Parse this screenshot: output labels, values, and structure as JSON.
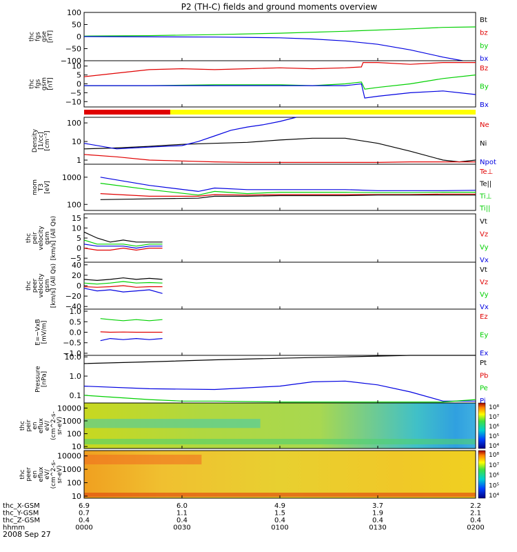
{
  "title": "P2 (TH-C) fields and ground moments overview",
  "date_label": "2008 Sep 27",
  "colors": {
    "black": "#000000",
    "red": "#e00000",
    "green": "#00d000",
    "blue": "#0000e0",
    "yellow": "#ffff00"
  },
  "chart_data": [
    {
      "type": "line",
      "panel": "fgs_gse",
      "ylabel": [
        "thc",
        "fgs",
        "gse",
        "[nT]"
      ],
      "yticks": [
        "100",
        "50",
        "0",
        "−50",
        "−100"
      ],
      "ylim": [
        -100,
        100
      ],
      "log": false,
      "legend": [
        {
          "text": "Bt",
          "color": "#000000"
        },
        {
          "text": "bz",
          "color": "#e00000"
        },
        {
          "text": "by",
          "color": "#00d000"
        },
        {
          "text": "bx",
          "color": "#0000e0"
        }
      ],
      "series": [
        {
          "color": "#00d000",
          "x": [
            0,
            20,
            40,
            60,
            80,
            100,
            110,
            120
          ],
          "y": [
            2,
            4,
            8,
            14,
            22,
            32,
            38,
            40
          ]
        },
        {
          "color": "#0000e0",
          "x": [
            0,
            20,
            40,
            60,
            70,
            80,
            90,
            100,
            110,
            116
          ],
          "y": [
            0,
            -1,
            -2,
            -5,
            -10,
            -18,
            -32,
            -55,
            -85,
            -100
          ]
        }
      ]
    },
    {
      "type": "line",
      "panel": "fgs_gsm",
      "ylabel": [
        "thc",
        "fgs",
        "gsm",
        "[nT]"
      ],
      "yticks": [
        "10",
        "5",
        "0",
        "−5",
        "−10"
      ],
      "ylim": [
        -13,
        13
      ],
      "log": false,
      "legend": [
        {
          "text": "Bz",
          "color": "#e00000"
        },
        {
          "text": "By",
          "color": "#00d000"
        },
        {
          "text": "Bx",
          "color": "#0000e0"
        }
      ],
      "series": [
        {
          "color": "#e00000",
          "x": [
            0,
            10,
            20,
            30,
            40,
            50,
            60,
            70,
            80,
            85,
            85.5,
            90,
            100,
            110,
            120
          ],
          "y": [
            4,
            6,
            8,
            8.5,
            8,
            8.5,
            9,
            8.5,
            9,
            9.5,
            12,
            12,
            11,
            12,
            12
          ]
        },
        {
          "color": "#00d000",
          "x": [
            0,
            20,
            40,
            60,
            70,
            80,
            85,
            86,
            90,
            100,
            110,
            120
          ],
          "y": [
            -1,
            -1,
            -0.5,
            -0.5,
            -1,
            0,
            1,
            -3,
            -2,
            0,
            3,
            5
          ]
        },
        {
          "color": "#0000e0",
          "x": [
            0,
            20,
            40,
            60,
            70,
            80,
            85,
            86,
            90,
            100,
            110,
            120
          ],
          "y": [
            -1,
            -1,
            -1,
            -1,
            -1,
            -1,
            0,
            -8,
            -7,
            -5,
            -4,
            -6
          ]
        }
      ]
    },
    {
      "type": "line",
      "panel": "density",
      "ylabel": [
        "Density",
        "[1/cc]",
        "[cm⁻³]"
      ],
      "yticks": [
        "100",
        "10",
        "1"
      ],
      "ylim": [
        0.6,
        200
      ],
      "log": true,
      "legend": [
        {
          "text": "Ne",
          "color": "#e00000"
        },
        {
          "text": "Ni",
          "color": "#000000"
        },
        {
          "text": "Npot",
          "color": "#0000e0"
        }
      ],
      "series": [
        {
          "color": "#000000",
          "x": [
            0,
            10,
            20,
            30,
            40,
            50,
            60,
            70,
            80,
            90,
            100,
            110,
            115,
            120
          ],
          "y": [
            4,
            4.5,
            5.5,
            7,
            8,
            9,
            12,
            15,
            15,
            8,
            3,
            1,
            0.8,
            1
          ]
        },
        {
          "color": "#0000e0",
          "x": [
            0,
            10,
            20,
            30,
            35,
            40,
            45,
            50,
            55,
            60,
            65
          ],
          "y": [
            8,
            4,
            5,
            6,
            10,
            20,
            40,
            60,
            80,
            120,
            200
          ]
        },
        {
          "color": "#e00000",
          "x": [
            0,
            10,
            20,
            30,
            40,
            50,
            60,
            70,
            80,
            90,
            100,
            110,
            120
          ],
          "y": [
            2,
            1.5,
            1,
            0.9,
            0.8,
            0.75,
            0.75,
            0.75,
            0.75,
            0.75,
            0.8,
            0.8,
            0.8
          ]
        }
      ]
    },
    {
      "type": "line",
      "panel": "mom_temp",
      "ylabel": [
        "mom",
        "T3",
        "[eV]"
      ],
      "yticks": [
        "1000",
        "100"
      ],
      "ylim": [
        60,
        3000
      ],
      "log": true,
      "legend": [
        {
          "text": "Te⊥",
          "color": "#e00000"
        },
        {
          "text": "Te||",
          "color": "#000000"
        },
        {
          "text": "Ti⊥",
          "color": "#00d000"
        },
        {
          "text": "Ti||",
          "color": "#00d000"
        }
      ],
      "series": [
        {
          "color": "#0000e0",
          "x": [
            5,
            20,
            35,
            40,
            50,
            60,
            70,
            80,
            90,
            100,
            110,
            120
          ],
          "y": [
            1000,
            500,
            300,
            400,
            350,
            350,
            350,
            350,
            320,
            320,
            320,
            330
          ]
        },
        {
          "color": "#00d000",
          "x": [
            5,
            20,
            35,
            40,
            50,
            60,
            70,
            80,
            90,
            100,
            110,
            120
          ],
          "y": [
            600,
            350,
            220,
            300,
            250,
            280,
            280,
            280,
            270,
            270,
            280,
            280
          ]
        },
        {
          "color": "#e00000",
          "x": [
            5,
            20,
            35,
            40,
            50,
            60,
            70,
            80,
            90,
            100,
            110,
            120
          ],
          "y": [
            250,
            200,
            200,
            230,
            220,
            230,
            230,
            230,
            230,
            230,
            240,
            240
          ]
        },
        {
          "color": "#000000",
          "x": [
            5,
            20,
            35,
            40,
            50,
            60,
            70,
            80,
            90,
            100,
            110,
            120
          ],
          "y": [
            150,
            160,
            170,
            200,
            200,
            210,
            210,
            210,
            220,
            220,
            220,
            220
          ]
        }
      ]
    },
    {
      "type": "line",
      "panel": "peir_velocity",
      "ylabel": [
        "thc",
        "peir",
        "velocity",
        "gsm",
        "[km/s] (All Qs)"
      ],
      "yticks": [
        "15",
        "10",
        "5",
        "0",
        "−5"
      ],
      "ylim": [
        -7,
        17
      ],
      "log": false,
      "legend": [
        {
          "text": "Vt",
          "color": "#000000"
        },
        {
          "text": "Vz",
          "color": "#e00000"
        },
        {
          "text": "Vy",
          "color": "#00d000"
        },
        {
          "text": "Vx",
          "color": "#0000e0"
        }
      ],
      "series": [
        {
          "color": "#000000",
          "x": [
            0,
            4,
            8,
            12,
            16,
            20,
            24
          ],
          "y": [
            8,
            5,
            3,
            4,
            3,
            3,
            3
          ]
        },
        {
          "color": "#00d000",
          "x": [
            0,
            4,
            8,
            12,
            16,
            20,
            24
          ],
          "y": [
            4,
            2,
            2,
            2,
            1,
            2,
            2
          ]
        },
        {
          "color": "#e00000",
          "x": [
            0,
            4,
            8,
            12,
            16,
            20,
            24
          ],
          "y": [
            0,
            -1,
            -1,
            0,
            -1,
            0,
            0
          ]
        },
        {
          "color": "#0000e0",
          "x": [
            0,
            4,
            8,
            12,
            16,
            20,
            24
          ],
          "y": [
            2,
            1,
            1,
            1,
            0,
            1,
            1
          ]
        }
      ]
    },
    {
      "type": "line",
      "panel": "peer_velocity",
      "ylabel": [
        "thc",
        "peer",
        "velocity",
        "gsm",
        "[km/s] (All Qs)"
      ],
      "yticks": [
        "40",
        "20",
        "0",
        "−20",
        "−40"
      ],
      "ylim": [
        -45,
        45
      ],
      "log": false,
      "legend": [
        {
          "text": "Vt",
          "color": "#000000"
        },
        {
          "text": "Vz",
          "color": "#e00000"
        },
        {
          "text": "Vy",
          "color": "#00d000"
        },
        {
          "text": "Vx",
          "color": "#0000e0"
        }
      ],
      "series": [
        {
          "color": "#000000",
          "x": [
            0,
            4,
            8,
            12,
            16,
            20,
            24
          ],
          "y": [
            12,
            10,
            12,
            15,
            12,
            14,
            12
          ]
        },
        {
          "color": "#00d000",
          "x": [
            0,
            4,
            8,
            12,
            16,
            20,
            24
          ],
          "y": [
            5,
            3,
            5,
            8,
            5,
            6,
            5
          ]
        },
        {
          "color": "#e00000",
          "x": [
            0,
            4,
            8,
            12,
            16,
            20,
            24
          ],
          "y": [
            -2,
            -3,
            -2,
            0,
            -3,
            -2,
            -2
          ]
        },
        {
          "color": "#0000e0",
          "x": [
            0,
            4,
            8,
            12,
            16,
            20,
            24
          ],
          "y": [
            -5,
            -10,
            -8,
            -12,
            -10,
            -8,
            -15
          ]
        }
      ]
    },
    {
      "type": "line",
      "panel": "efield",
      "ylabel": [
        "E=−VxB",
        "[mV/m]"
      ],
      "yticks": [
        "1.0",
        "0.5",
        "0.0",
        "−0.5",
        "−1.0"
      ],
      "ylim": [
        -1.1,
        1.1
      ],
      "log": false,
      "legend": [
        {
          "text": "Ez",
          "color": "#e00000"
        },
        {
          "text": "Ey",
          "color": "#00d000"
        },
        {
          "text": "Ex",
          "color": "#0000e0"
        }
      ],
      "series": [
        {
          "color": "#00d000",
          "x": [
            5,
            8,
            12,
            16,
            20,
            24
          ],
          "y": [
            0.65,
            0.6,
            0.55,
            0.6,
            0.55,
            0.6
          ]
        },
        {
          "color": "#e00000",
          "x": [
            5,
            8,
            12,
            16,
            20,
            24
          ],
          "y": [
            0.02,
            0.0,
            0.01,
            0.0,
            0.0,
            0.0
          ]
        },
        {
          "color": "#0000e0",
          "x": [
            5,
            8,
            12,
            16,
            20,
            24
          ],
          "y": [
            -0.4,
            -0.3,
            -0.35,
            -0.3,
            -0.35,
            -0.3
          ]
        }
      ]
    },
    {
      "type": "line",
      "panel": "pressure",
      "ylabel": [
        "Pressure",
        "[nPa]"
      ],
      "yticks": [
        "10.0",
        "1.0",
        "0.1"
      ],
      "ylim": [
        0.04,
        12
      ],
      "log": true,
      "legend": [
        {
          "text": "Pt",
          "color": "#000000"
        },
        {
          "text": "Pb",
          "color": "#e00000"
        },
        {
          "text": "Pe",
          "color": "#00d000"
        },
        {
          "text": "Pi",
          "color": "#0000e0"
        }
      ],
      "series": [
        {
          "color": "#000000",
          "x": [
            0,
            20,
            40,
            60,
            80,
            90,
            100,
            120
          ],
          "y": [
            4.5,
            5.5,
            7,
            8.5,
            10,
            11,
            12,
            12
          ]
        },
        {
          "color": "#0000e0",
          "x": [
            0,
            20,
            40,
            60,
            70,
            80,
            90,
            100,
            110,
            120
          ],
          "y": [
            0.3,
            0.22,
            0.2,
            0.3,
            0.5,
            0.55,
            0.35,
            0.15,
            0.05,
            0.05
          ]
        },
        {
          "color": "#00d000",
          "x": [
            0,
            20,
            30,
            40,
            60,
            80,
            100,
            110,
            120
          ],
          "y": [
            0.1,
            0.06,
            0.05,
            0.05,
            0.045,
            0.045,
            0.045,
            0.045,
            0.06
          ]
        }
      ]
    },
    {
      "type": "heatmap",
      "panel": "peir_eflux",
      "ylabel": [
        "thc",
        "peir",
        "en",
        "eflux",
        "eV/",
        "(cm^2-s-",
        "sr-eV)"
      ],
      "yticks": [
        "10000",
        "1000",
        "100",
        "10"
      ],
      "ylim": [
        7,
        25000
      ],
      "log": true,
      "colorbar_ticks": [
        "10⁸",
        "10⁷",
        "10⁶",
        "10⁵",
        "10⁴"
      ]
    },
    {
      "type": "heatmap",
      "panel": "peer_eflux",
      "ylabel": [
        "thc",
        "peer",
        "en",
        "eflux",
        "eV/",
        "(cm^2-s-",
        "sr-eV)"
      ],
      "yticks": [
        "10000",
        "1000",
        "100",
        "10"
      ],
      "ylim": [
        7,
        25000
      ],
      "log": true,
      "colorbar_ticks": [
        "10⁸",
        "10⁷",
        "10⁶",
        "10⁵",
        "10⁴"
      ]
    }
  ],
  "orbit_rows": [
    {
      "label": "thc_X-GSM",
      "values": [
        "6.9",
        "6.0",
        "4.9",
        "3.7",
        "2.2"
      ]
    },
    {
      "label": "thc_Y-GSM",
      "values": [
        "0.7",
        "1.1",
        "1.5",
        "1.9",
        "2.1"
      ]
    },
    {
      "label": "thc_Z-GSM",
      "values": [
        "0.4",
        "0.4",
        "0.4",
        "0.4",
        "0.4"
      ]
    },
    {
      "label": "hhmm",
      "values": [
        "0000",
        "0030",
        "0100",
        "0130",
        "0200"
      ]
    }
  ]
}
